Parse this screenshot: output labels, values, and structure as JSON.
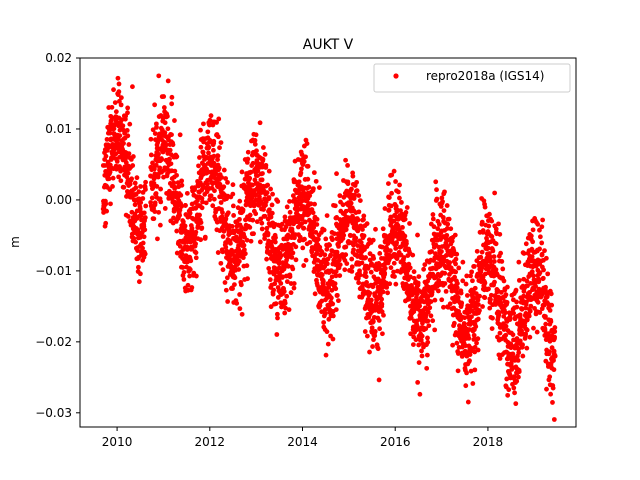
{
  "chart_data": {
    "type": "scatter",
    "title": "AUKT V",
    "xlabel": "",
    "ylabel": "m",
    "xlim": [
      2009.2,
      2019.9
    ],
    "ylim": [
      -0.032,
      0.02
    ],
    "xticks": [
      "2010",
      "2012",
      "2014",
      "2016",
      "2018"
    ],
    "yticks": [
      "0.02",
      "0.01",
      "0.00",
      "−0.01",
      "−0.02",
      "−0.03"
    ],
    "grid": false,
    "legend_position": "top-right",
    "series": [
      {
        "name": "repro2018a (IGS14)",
        "color": "#ff0000",
        "trend": {
          "start": [
            2009.7,
            0.004
          ],
          "end": [
            2019.45,
            -0.017
          ]
        },
        "annual_amplitude": 0.006,
        "noise_sd": 0.0038,
        "x_range": [
          2009.7,
          2019.45
        ],
        "approx_points": 3400
      }
    ]
  }
}
